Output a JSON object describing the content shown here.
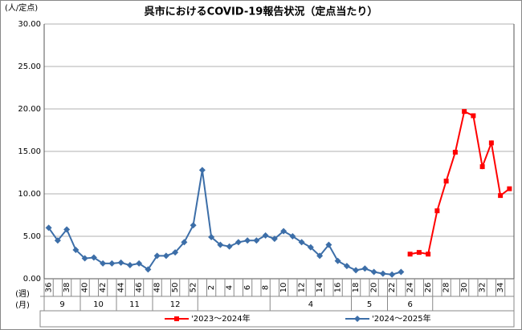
{
  "chart_data": {
    "type": "line",
    "title": "呉市におけるCOVID-19報告状況（定点当たり）",
    "y_label": "(人/定点)",
    "week_row_label": "(週)",
    "month_row_label": "(月)",
    "categories": [
      "36",
      null,
      "38",
      null,
      "40",
      null,
      "42",
      null,
      "44",
      null,
      "46",
      null,
      "48",
      null,
      "50",
      null,
      "52",
      null,
      "2",
      null,
      "4",
      null,
      "6",
      null,
      "8",
      null,
      "10",
      null,
      "12",
      null,
      "14",
      null,
      "16",
      null,
      "18",
      null,
      "20",
      null,
      "22",
      null,
      "24",
      null,
      "26",
      null,
      "28",
      null,
      "30",
      null,
      "32",
      null,
      "34",
      null
    ],
    "months": [
      "9",
      "10",
      "11",
      "12",
      "4",
      "5",
      "6"
    ],
    "ylim": [
      0,
      30
    ],
    "yticks": [
      {
        "value": 0,
        "label": "0.00"
      },
      {
        "value": 5,
        "label": "5.00"
      },
      {
        "value": 10,
        "label": "10.00"
      },
      {
        "value": 15,
        "label": "15.00"
      },
      {
        "value": 20,
        "label": "20.00"
      },
      {
        "value": 25,
        "label": "25.00"
      },
      {
        "value": 30,
        "label": "30.00"
      }
    ],
    "grid": true,
    "legend": "bottom",
    "series": [
      {
        "name": "'2023～2024年",
        "color": "#ff0000",
        "marker": "square",
        "values": [
          null,
          null,
          null,
          null,
          null,
          null,
          null,
          null,
          null,
          null,
          null,
          null,
          null,
          null,
          null,
          null,
          null,
          null,
          null,
          null,
          null,
          null,
          null,
          null,
          null,
          null,
          null,
          null,
          null,
          null,
          null,
          null,
          null,
          null,
          null,
          null,
          null,
          null,
          null,
          null,
          2.9,
          3.1,
          2.9,
          8.0,
          11.5,
          14.9,
          19.7,
          19.2,
          13.2,
          16.0,
          9.8,
          10.6
        ]
      },
      {
        "name": "'2024～2025年",
        "color": "#3c6ea8",
        "marker": "diamond",
        "values": [
          6.0,
          4.5,
          5.8,
          3.4,
          2.4,
          2.5,
          1.8,
          1.8,
          1.9,
          1.6,
          1.8,
          1.1,
          2.7,
          2.7,
          3.1,
          4.3,
          6.3,
          12.8,
          4.9,
          4.0,
          3.8,
          4.3,
          4.5,
          4.5,
          5.1,
          4.7,
          5.6,
          5.0,
          4.3,
          3.7,
          2.7,
          4.0,
          2.1,
          1.5,
          1.0,
          1.2,
          0.8,
          0.6,
          0.5,
          0.8,
          null,
          null,
          null,
          null,
          null,
          null,
          null,
          null,
          null,
          null,
          null,
          null
        ]
      }
    ]
  }
}
